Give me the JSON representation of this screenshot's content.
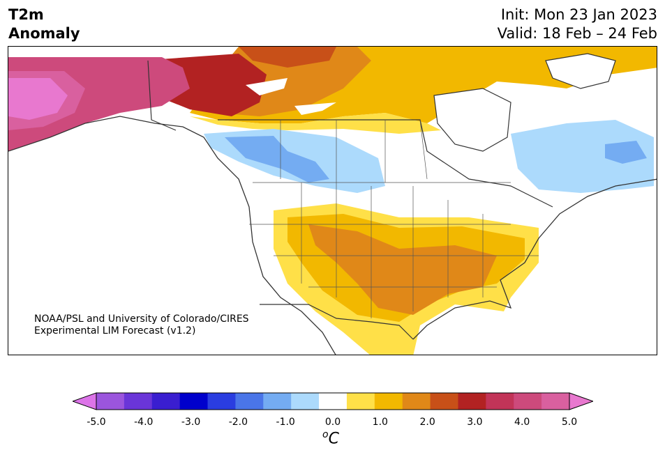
{
  "title": {
    "left_line1": "T2m",
    "left_line2": "Anomaly",
    "right_line1": "Init: Mon 23 Jan 2023",
    "right_line2": "Valid: 18 Feb – 24 Feb"
  },
  "credit": {
    "line1": "NOAA/PSL and University of Colorado/CIRES",
    "line2": "Experimental LIM Forecast (v1.2)"
  },
  "colorbar": {
    "unit_base": "C",
    "unit_sup": "o",
    "tick_labels": [
      "-5.0",
      "-4.0",
      "-3.0",
      "-2.0",
      "-1.0",
      "0.0",
      "1.0",
      "2.0",
      "3.0",
      "4.0",
      "5.0"
    ],
    "levels": [
      -5.0,
      -4.5,
      -4.0,
      -3.5,
      -3.0,
      -2.5,
      -2.0,
      -1.5,
      -1.0,
      -0.5,
      0.5,
      1.0,
      1.5,
      2.0,
      2.5,
      3.0,
      3.5,
      4.0,
      4.5,
      5.0
    ],
    "colors": [
      "#dc74e8",
      "#9b55dd",
      "#6a35d8",
      "#3a1ed0",
      "#0000cc",
      "#2a3de0",
      "#4a75e8",
      "#74acf2",
      "#acdafc",
      "#ffffff",
      "#ffe048",
      "#f2b800",
      "#e08818",
      "#c85018",
      "#b22222",
      "#c23458",
      "#cd4a7c",
      "#d9609f",
      "#e878cf"
    ]
  },
  "map": {
    "regions": [
      "Alaska",
      "Canada",
      "Contiguous United States",
      "Mexico",
      "Greenland",
      "Hudson Bay"
    ],
    "anomaly_areas": [
      {
        "region": "Alaska",
        "value_c": "4.0 to 5.0",
        "color": "#d9609f"
      },
      {
        "region": "Yukon and northern British Columbia",
        "value_c": "2.5 to 3.5",
        "color": "#b22222"
      },
      {
        "region": "Northwest Territories and Prairies",
        "value_c": "1.0 to 2.0",
        "color": "#f2b800"
      },
      {
        "region": "Southern Prairies and northern Plains",
        "value_c": "-1.0 to -2.0",
        "color": "#74acf2"
      },
      {
        "region": "Quebec and Labrador",
        "value_c": "-0.5 to -1.5",
        "color": "#acdafc"
      },
      {
        "region": "Southern Plains and Southeast US",
        "value_c": "1.0 to 2.5",
        "color": "#e08818"
      },
      {
        "region": "Southwest US and northern Mexico",
        "value_c": "0.5 to 1.5",
        "color": "#ffe048"
      }
    ]
  }
}
